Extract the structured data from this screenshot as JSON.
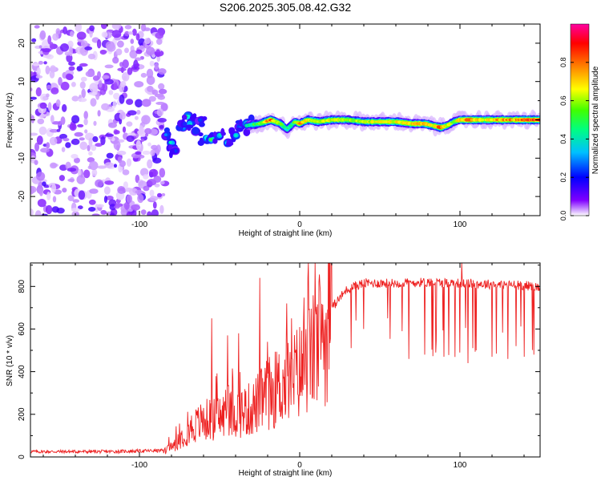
{
  "title": "S206.2025.305.08.42.G32",
  "chart_data": [
    {
      "type": "heatmap",
      "title": "S206.2025.305.08.42.G32",
      "xlabel": "Height of straight line (km)",
      "ylabel": "Frequency (Hz)",
      "xlim": [
        -168,
        150
      ],
      "ylim": [
        -25,
        25
      ],
      "xticks": [
        -100,
        0,
        100
      ],
      "xtick_labels": [
        "-100",
        "0",
        "100"
      ],
      "yticks": [
        -20,
        -10,
        0,
        10,
        20
      ],
      "ytick_labels": [
        "-20",
        "-10",
        "0",
        "10",
        "20"
      ],
      "colorbar": {
        "label": "Normalized spectral amplitude",
        "range": [
          0,
          1
        ],
        "ticks": [
          0,
          0.2,
          0.4,
          0.6,
          0.8
        ],
        "tick_labels": [
          "0.0",
          "0.2",
          "0.4",
          "0.6",
          "0.8"
        ],
        "colormap": [
          "#ffffff",
          "#e6ccff",
          "#8000ff",
          "#0000ff",
          "#00ffff",
          "#00ff00",
          "#ffff00",
          "#ff8000",
          "#ff0000",
          "#ff00ff"
        ]
      },
      "noise_region_x": [
        -168,
        -84
      ],
      "transition_blobs": [
        {
          "x": -83,
          "f": -4,
          "a": 0.35
        },
        {
          "x": -80,
          "f": -6,
          "a": 0.45
        },
        {
          "x": -78,
          "f": -8,
          "a": 0.3
        },
        {
          "x": -73,
          "f": -2,
          "a": 0.4
        },
        {
          "x": -70,
          "f": 1,
          "a": 0.5
        },
        {
          "x": -68,
          "f": -1,
          "a": 0.45
        },
        {
          "x": -65,
          "f": -3,
          "a": 0.35
        },
        {
          "x": -62,
          "f": 0,
          "a": 0.3
        },
        {
          "x": -58,
          "f": -5,
          "a": 0.5
        },
        {
          "x": -55,
          "f": -5,
          "a": 0.55
        },
        {
          "x": -50,
          "f": -4,
          "a": 0.45
        },
        {
          "x": -45,
          "f": -6,
          "a": 0.4
        },
        {
          "x": -40,
          "f": -4,
          "a": 0.45
        },
        {
          "x": -37,
          "f": -2,
          "a": 0.35
        },
        {
          "x": -33,
          "f": -1,
          "a": 0.5
        }
      ],
      "ridge": {
        "x": [
          -33,
          -25,
          -18,
          -12,
          -8,
          -3,
          0,
          5,
          12,
          20,
          30,
          40,
          50,
          60,
          70,
          78,
          83,
          88,
          92,
          96,
          100,
          105,
          115,
          125,
          135,
          143,
          150
        ],
        "freq": [
          -1.5,
          -1,
          0,
          -1,
          -2.5,
          -0.5,
          -1,
          0,
          -0.5,
          0,
          0,
          -0.5,
          -0.5,
          -0.5,
          -1,
          -1,
          -1.5,
          -2,
          -1.5,
          -0.5,
          0,
          0,
          0,
          0,
          0,
          0,
          0
        ],
        "amplitude": [
          0.45,
          0.6,
          0.85,
          0.6,
          0.5,
          0.55,
          0.8,
          0.7,
          0.65,
          0.7,
          0.65,
          0.65,
          0.7,
          0.7,
          0.75,
          0.8,
          0.7,
          0.85,
          0.7,
          0.6,
          0.75,
          0.85,
          0.7,
          0.8,
          0.8,
          0.9,
          0.85
        ]
      }
    },
    {
      "type": "line",
      "xlabel": "Height of straight line (km)",
      "ylabel": "SNR (10 * v/v)",
      "xlim": [
        -168,
        150
      ],
      "ylim": [
        0,
        910
      ],
      "xticks": [
        -100,
        0,
        100
      ],
      "xtick_labels": [
        "-100",
        "0",
        "100"
      ],
      "yticks": [
        0,
        200,
        400,
        600,
        800
      ],
      "ytick_labels": [
        "0",
        "200",
        "400",
        "600",
        "800"
      ],
      "series": [
        {
          "name": "SNR",
          "color": "#ee2222",
          "envelope_x": [
            -168,
            -120,
            -85,
            -78,
            -70,
            -60,
            -50,
            -40,
            -30,
            -20,
            -10,
            0,
            10,
            20,
            30,
            40,
            60,
            80,
            100,
            120,
            140,
            150
          ],
          "envelope_y": [
            25,
            25,
            30,
            70,
            140,
            190,
            210,
            230,
            250,
            330,
            380,
            450,
            560,
            700,
            790,
            815,
            815,
            820,
            815,
            810,
            805,
            795
          ],
          "spikes": [
            {
              "x": -55,
              "y": 650
            },
            {
              "x": -45,
              "y": 570
            },
            {
              "x": -38,
              "y": 580
            },
            {
              "x": -25,
              "y": 840
            },
            {
              "x": -20,
              "y": 540
            },
            {
              "x": -8,
              "y": 720
            },
            {
              "x": -5,
              "y": 650
            },
            {
              "x": 5,
              "y": 840
            },
            {
              "x": 101,
              "y": 910
            }
          ],
          "dropouts": [
            {
              "x": 35,
              "y": 640
            },
            {
              "x": 40,
              "y": 600
            },
            {
              "x": 55,
              "y": 650
            },
            {
              "x": 64,
              "y": 590
            },
            {
              "x": 68,
              "y": 460
            },
            {
              "x": 78,
              "y": 480
            },
            {
              "x": 85,
              "y": 490
            },
            {
              "x": 90,
              "y": 470
            },
            {
              "x": 100,
              "y": 490
            },
            {
              "x": 105,
              "y": 440
            },
            {
              "x": 110,
              "y": 500
            },
            {
              "x": 120,
              "y": 470
            },
            {
              "x": 130,
              "y": 460
            },
            {
              "x": 135,
              "y": 520
            },
            {
              "x": 140,
              "y": 470
            },
            {
              "x": 146,
              "y": 480
            }
          ]
        }
      ]
    }
  ]
}
